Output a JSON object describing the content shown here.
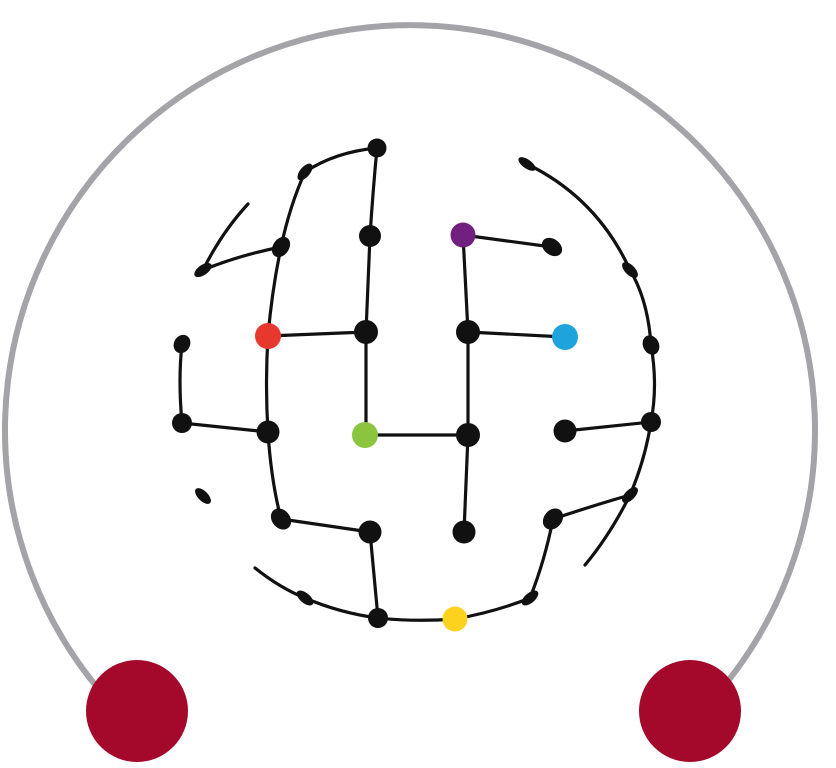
{
  "diagram": {
    "kind": "network-globe-logo",
    "colors": {
      "background": "#ffffff",
      "ring": "#a3a3a8",
      "anchor_balls": "#a4082a",
      "grid_lines": "#111111",
      "grid_nodes": "#111111",
      "node_purple": "#72207f",
      "node_red": "#e8372f",
      "node_blue": "#1fa3dc",
      "node_green": "#8bc43f",
      "node_yellow": "#fdd21f"
    },
    "colored_nodes": [
      "purple",
      "red",
      "blue",
      "green",
      "yellow"
    ],
    "anchors": [
      "left-anchor",
      "right-anchor"
    ]
  }
}
